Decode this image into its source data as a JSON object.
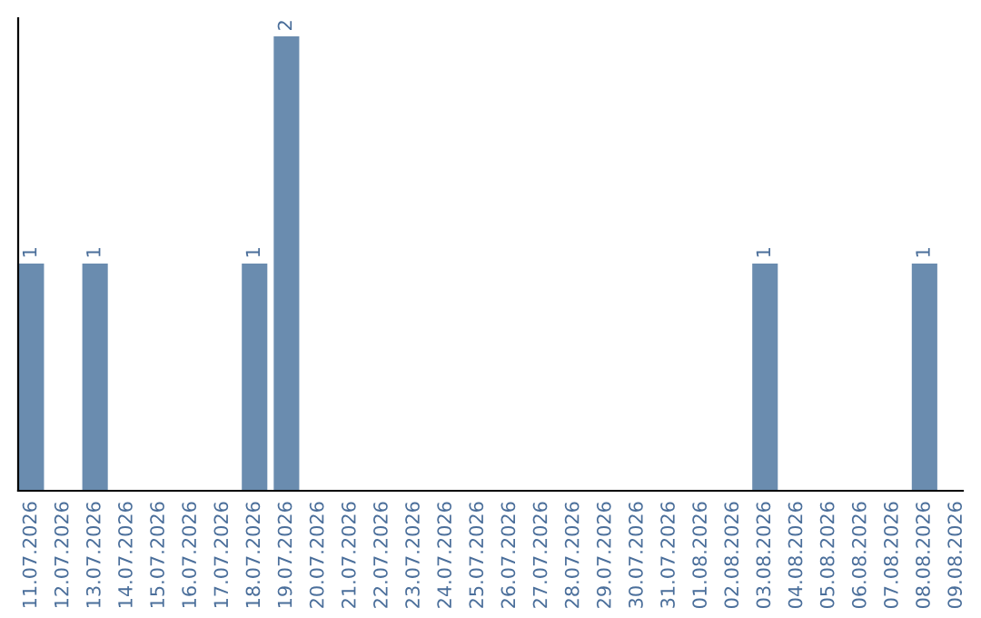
{
  "chart_data": {
    "type": "bar",
    "categories": [
      "11.07.2026",
      "12.07.2026",
      "13.07.2026",
      "14.07.2026",
      "15.07.2026",
      "16.07.2026",
      "17.07.2026",
      "18.07.2026",
      "19.07.2026",
      "20.07.2026",
      "21.07.2026",
      "22.07.2026",
      "23.07.2026",
      "24.07.2026",
      "25.07.2026",
      "26.07.2026",
      "27.07.2026",
      "28.07.2026",
      "29.07.2026",
      "30.07.2026",
      "31.07.2026",
      "01.08.2026",
      "02.08.2026",
      "03.08.2026",
      "04.08.2026",
      "05.08.2026",
      "06.08.2026",
      "07.08.2026",
      "08.08.2026",
      "09.08.2026"
    ],
    "values": [
      1,
      0,
      1,
      0,
      0,
      0,
      0,
      1,
      2,
      0,
      0,
      0,
      0,
      0,
      0,
      0,
      0,
      0,
      0,
      0,
      0,
      0,
      0,
      1,
      0,
      0,
      0,
      0,
      1,
      0
    ],
    "value_labels": [
      "1",
      null,
      "1",
      null,
      null,
      null,
      null,
      "1",
      "2",
      null,
      null,
      null,
      null,
      null,
      null,
      null,
      null,
      null,
      null,
      null,
      null,
      null,
      null,
      "1",
      null,
      null,
      null,
      null,
      "1",
      null
    ],
    "color": "#6a8caf",
    "tick_labels": "x"
  }
}
